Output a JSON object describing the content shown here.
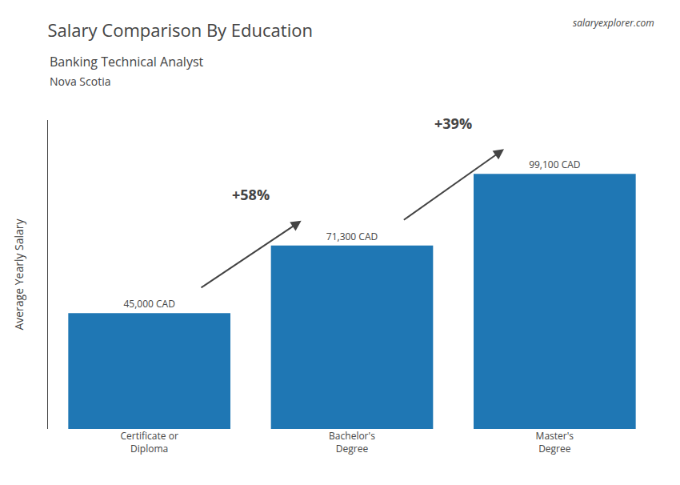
{
  "chart_data": {
    "type": "bar",
    "title": "Salary Comparison By Education",
    "subtitle": [
      "Banking Technical Analyst",
      "Nova Scotia"
    ],
    "source": "salaryexplorer.com",
    "categories": [
      "Certificate or\nDiploma",
      "Bachelor's\nDegree",
      "Master's\nDegree"
    ],
    "values": [
      45000,
      71300,
      99100
    ],
    "value_labels": [
      "45,000 CAD",
      "71,300 CAD",
      "99,100 CAD"
    ],
    "data_labels": true,
    "ylabel": "Average Yearly Salary",
    "ylim": [
      0,
      120000
    ],
    "tick_labels": "x",
    "grid": false,
    "annotations": [
      {
        "text": "+58%",
        "from": "Certificate or\nDiploma",
        "to": "Bachelor's\nDegree"
      },
      {
        "text": "+39%",
        "from": "Bachelor's\nDegree",
        "to": "Master's\nDegree"
      }
    ]
  }
}
